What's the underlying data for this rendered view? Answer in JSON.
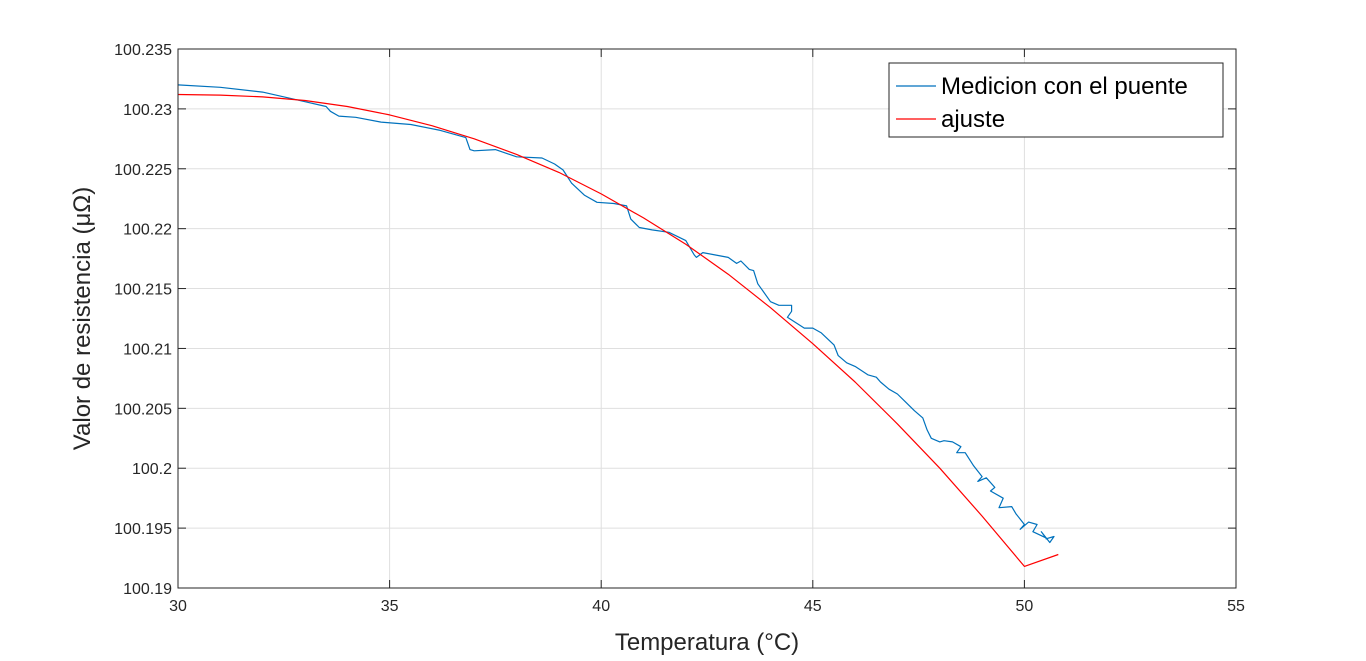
{
  "chart_data": {
    "type": "line",
    "title": "",
    "xlabel": "Temperatura (°C)",
    "ylabel": "Valor de resistencia (μΩ)",
    "xlim": [
      30,
      55
    ],
    "ylim": [
      100.19,
      100.235
    ],
    "xticks": [
      30,
      35,
      40,
      45,
      50,
      55
    ],
    "xtick_labels": [
      "30",
      "35",
      "40",
      "45",
      "50",
      "55"
    ],
    "yticks": [
      100.19,
      100.195,
      100.2,
      100.205,
      100.21,
      100.215,
      100.22,
      100.225,
      100.23,
      100.235
    ],
    "ytick_labels": [
      "100.19",
      "100.195",
      "100.2",
      "100.205",
      "100.21",
      "100.215",
      "100.22",
      "100.225",
      "100.23",
      "100.235"
    ],
    "grid": true,
    "legend": "top-right",
    "series": [
      {
        "name": "Medicion con el puente",
        "color": "#0072bd",
        "x": [
          30.0,
          31.0,
          32.0,
          33.0,
          33.5,
          33.6,
          33.8,
          34.2,
          34.8,
          35.5,
          36.2,
          36.8,
          36.9,
          37.0,
          37.5,
          38.0,
          38.6,
          38.9,
          39.1,
          39.3,
          39.6,
          39.9,
          40.3,
          40.6,
          40.7,
          40.9,
          41.2,
          41.6,
          42.0,
          42.2,
          42.25,
          42.4,
          42.7,
          43.0,
          43.2,
          43.3,
          43.5,
          43.6,
          43.7,
          44.0,
          44.2,
          44.3,
          44.5,
          44.5,
          44.4,
          44.8,
          45.0,
          45.2,
          45.5,
          45.6,
          45.8,
          46.0,
          46.3,
          46.5,
          46.6,
          46.8,
          47.0,
          47.2,
          47.4,
          47.6,
          47.7,
          47.8,
          48.0,
          48.1,
          48.3,
          48.5,
          48.4,
          48.6,
          48.8,
          49.0,
          48.9,
          49.1,
          49.3,
          49.2,
          49.5,
          49.4,
          49.7,
          49.8,
          50.0,
          49.9,
          50.1,
          50.3,
          50.2,
          50.5,
          50.4,
          50.6,
          50.7,
          50.5
        ],
        "y": [
          100.232,
          100.2318,
          100.2314,
          100.2306,
          100.2302,
          100.2298,
          100.2294,
          100.2293,
          100.2289,
          100.2287,
          100.2282,
          100.2276,
          100.2266,
          100.2265,
          100.2266,
          100.226,
          100.2259,
          100.2254,
          100.2249,
          100.2238,
          100.2228,
          100.2222,
          100.2221,
          100.2219,
          100.2208,
          100.2201,
          100.2199,
          100.2197,
          100.219,
          100.2178,
          100.2176,
          100.218,
          100.2178,
          100.2176,
          100.2171,
          100.2173,
          100.2166,
          100.2165,
          100.2154,
          100.2139,
          100.2136,
          100.2136,
          100.2136,
          100.2131,
          100.2126,
          100.2117,
          100.2117,
          100.2113,
          100.2103,
          100.2094,
          100.2088,
          100.2085,
          100.2078,
          100.2076,
          100.2072,
          100.2066,
          100.2062,
          100.2055,
          100.2048,
          100.2042,
          100.2032,
          100.2025,
          100.2022,
          100.2023,
          100.2022,
          100.2018,
          100.2013,
          100.2013,
          100.2002,
          100.1993,
          100.1989,
          100.1992,
          100.1984,
          100.1981,
          100.1975,
          100.1967,
          100.1968,
          100.1962,
          100.1953,
          100.1949,
          100.1955,
          100.1953,
          100.1947,
          100.1942,
          100.1947,
          100.1938,
          100.1943,
          100.1941
        ]
      },
      {
        "name": "ajuste",
        "color": "#ff0000",
        "x": [
          30,
          31,
          32,
          33,
          34,
          35,
          36,
          37,
          38,
          39,
          40,
          41,
          42,
          43,
          44,
          45,
          46,
          47,
          48,
          49,
          50,
          50.8
        ],
        "y": [
          100.2312,
          100.23115,
          100.231,
          100.2307,
          100.2302,
          100.2295,
          100.2286,
          100.2275,
          100.2262,
          100.2247,
          100.2229,
          100.2209,
          100.2187,
          100.2162,
          100.2134,
          100.2104,
          100.2072,
          100.2037,
          100.2,
          100.196,
          100.1918,
          100.1928
        ]
      }
    ]
  }
}
